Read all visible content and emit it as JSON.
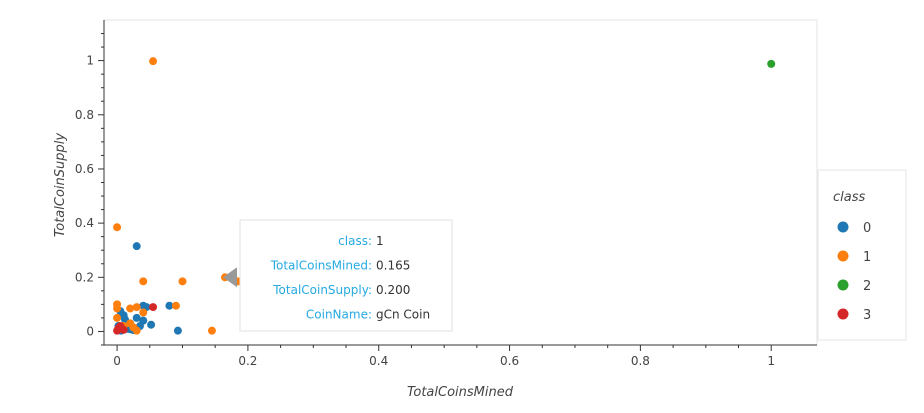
{
  "chart_data": {
    "type": "scatter",
    "title": "",
    "xlabel": "TotalCoinsMined",
    "ylabel": "TotalCoinSupply",
    "xlim": [
      -0.02,
      1.07
    ],
    "ylim": [
      -0.05,
      1.15
    ],
    "xticks": [
      0,
      0.2,
      0.4,
      0.6,
      0.8,
      1
    ],
    "xtick_labels": [
      "0",
      "0.2",
      "0.4",
      "0.6",
      "0.8",
      "1"
    ],
    "yticks": [
      0,
      0.2,
      0.4,
      0.6,
      0.8,
      1
    ],
    "ytick_labels": [
      "0",
      "0.2",
      "0.4",
      "0.6",
      "0.8",
      "1"
    ],
    "grid": false,
    "legend": {
      "title": "class",
      "placement": "right"
    },
    "series": [
      {
        "name": "0",
        "color": "#1f77b4",
        "points": [
          [
            0.03,
            0.315
          ],
          [
            0.04,
            0.095
          ],
          [
            0.08,
            0.095
          ],
          [
            0.093,
            0.003
          ],
          [
            0.052,
            0.025
          ],
          [
            0.04,
            0.04
          ],
          [
            0.03,
            0.05
          ],
          [
            0.02,
            0.03
          ],
          [
            0.01,
            0.06
          ],
          [
            0.005,
            0.075
          ],
          [
            0.015,
            0.01
          ],
          [
            0.025,
            0.005
          ],
          [
            0.035,
            0.02
          ],
          [
            0.045,
            0.09
          ],
          [
            0.002,
            0.02
          ],
          [
            0.012,
            0.045
          ],
          [
            0.02,
            0.008
          ],
          [
            0.006,
            0.003
          ]
        ]
      },
      {
        "name": "1",
        "color": "#ff7f0e",
        "points": [
          [
            0.055,
            0.998
          ],
          [
            0.0,
            0.385
          ],
          [
            0.04,
            0.185
          ],
          [
            0.1,
            0.185
          ],
          [
            0.165,
            0.2
          ],
          [
            0.185,
            0.185
          ],
          [
            0.145,
            0.003
          ],
          [
            0.09,
            0.095
          ],
          [
            0.03,
            0.09
          ],
          [
            0.02,
            0.085
          ],
          [
            0.0,
            0.1
          ],
          [
            0.0,
            0.085
          ],
          [
            0.01,
            0.02
          ],
          [
            0.02,
            0.03
          ],
          [
            0.005,
            0.01
          ],
          [
            0.025,
            0.015
          ],
          [
            0.03,
            0.003
          ],
          [
            0.04,
            0.07
          ],
          [
            0.0,
            0.05
          ]
        ]
      },
      {
        "name": "2",
        "color": "#2ca02c",
        "points": [
          [
            1.0,
            0.988
          ]
        ]
      },
      {
        "name": "3",
        "color": "#d62728",
        "points": [
          [
            0.002,
            0.012
          ],
          [
            0.0,
            0.003
          ],
          [
            0.055,
            0.09
          ],
          [
            0.005,
            0.02
          ],
          [
            0.01,
            0.006
          ]
        ]
      }
    ],
    "hover_tooltip": {
      "point": [
        0.165,
        0.2
      ],
      "rows": [
        {
          "key": "class:",
          "value": "1"
        },
        {
          "key": "TotalCoinsMined:",
          "value": "0.165"
        },
        {
          "key": "TotalCoinSupply:",
          "value": "0.200"
        },
        {
          "key": "CoinName:",
          "value": "gCn Coin"
        }
      ]
    }
  }
}
